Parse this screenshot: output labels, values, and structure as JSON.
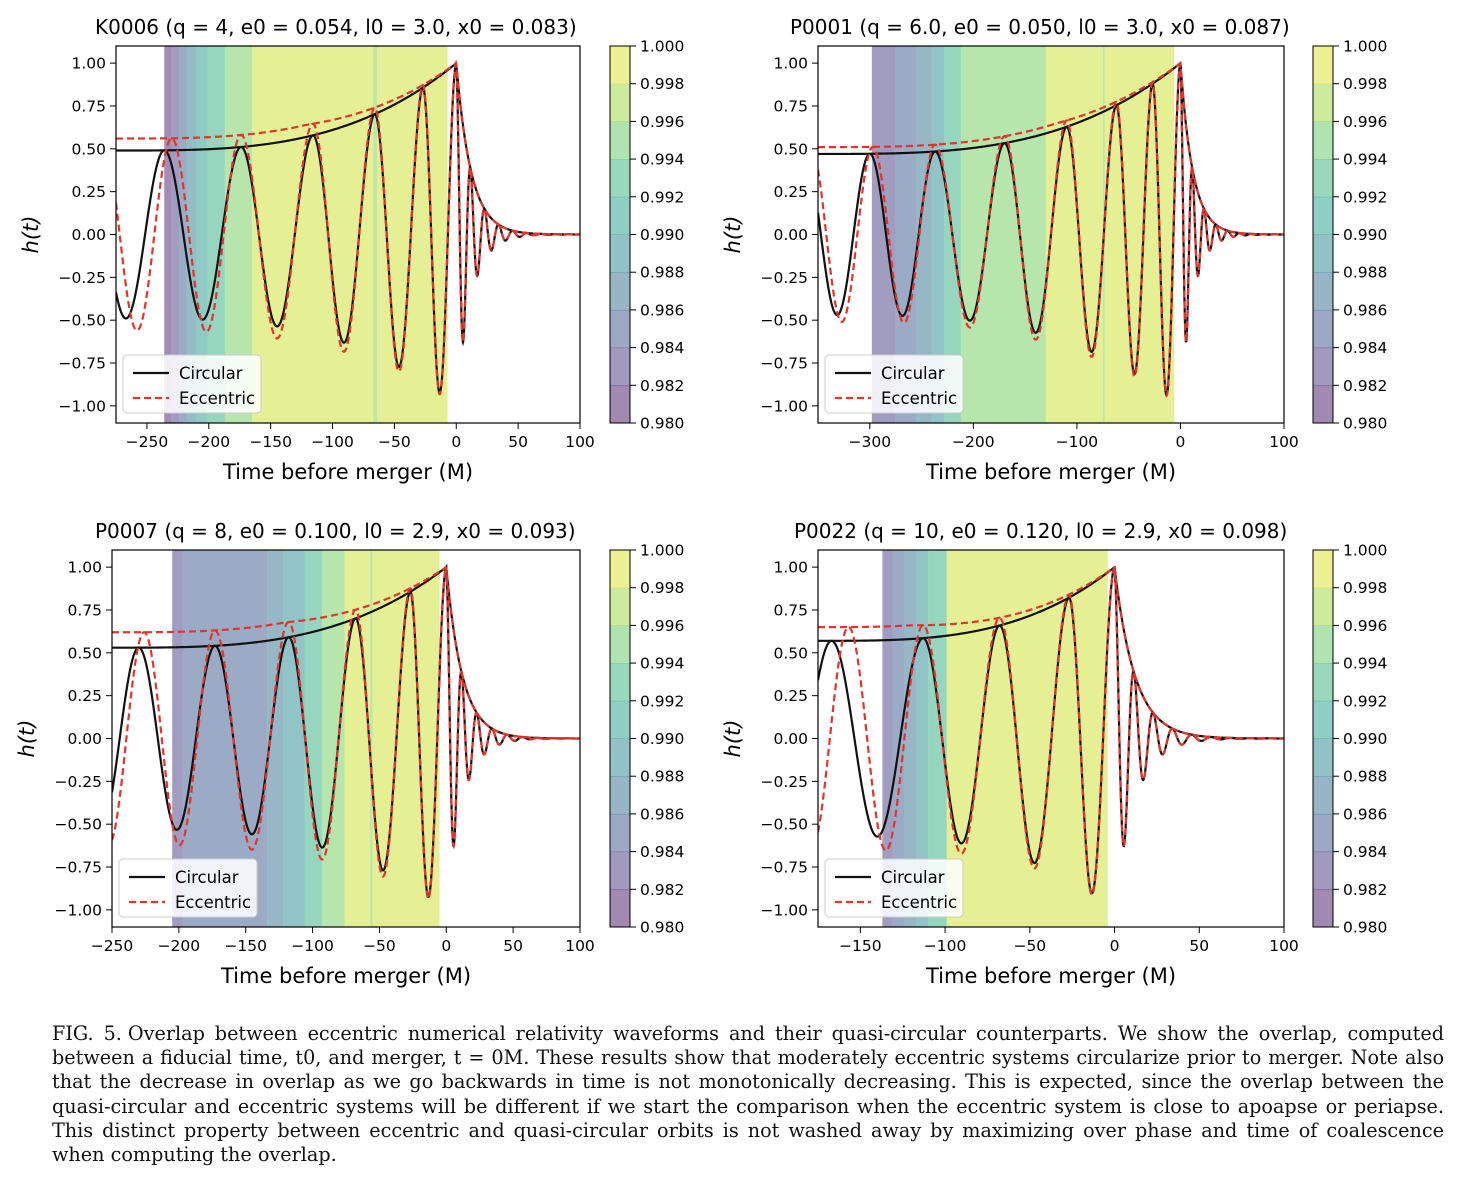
{
  "figure": {
    "caption_label": "FIG. 5.",
    "caption_text": "Overlap between eccentric numerical relativity waveforms and their quasi-circular counterparts. We show the overlap, computed between a fiducial time, t0, and merger, t = 0M. These results show that moderately eccentric systems circularize prior to merger. Note also that the decrease in overlap as we go backwards in time is not monotonically decreasing. This is expected, since the overlap between the quasi-circular and eccentric systems will be different if we start the comparison when the eccentric system is close to apoapse or periapse. This distinct property between eccentric and quasi-circular orbits is not washed away by maximizing over phase and time of coalescence when computing the overlap."
  },
  "colors": {
    "circular": "#111111",
    "eccentric": "#e0352b",
    "colormap_viridis": [
      "#440154",
      "#482878",
      "#3e4989",
      "#31688e",
      "#26828e",
      "#1f9e89",
      "#35b779",
      "#6ece58",
      "#b5de2b",
      "#fde725"
    ]
  },
  "chart_data": [
    {
      "type": "line",
      "id": "K0006",
      "title": "K0006 (q = 4, e0 = 0.054, l0 = 3.0, x0 = 0.083)",
      "title_parts": {
        "name": "K0006",
        "q": "4",
        "e0": "0.054",
        "l0": "3.0",
        "x0": "0.083"
      },
      "xlabel": "Time before merger (M)",
      "ylabel": "h(t)",
      "xlim": [
        -275,
        100
      ],
      "ylim": [
        -1.1,
        1.1
      ],
      "xticks": [
        "−250",
        "−200",
        "−150",
        "−100",
        "−50",
        "0",
        "50",
        "100"
      ],
      "xtick_values": [
        -250,
        -200,
        -150,
        -100,
        -50,
        0,
        50,
        100
      ],
      "yticks": [
        "1.00",
        "0.75",
        "0.50",
        "0.25",
        "0.00",
        "−0.25",
        "−0.50",
        "−0.75",
        "−1.00"
      ],
      "ytick_values": [
        1,
        0.75,
        0.5,
        0.25,
        0,
        -0.25,
        -0.5,
        -0.75,
        -1
      ],
      "legend": [
        "Circular",
        "Eccentric"
      ],
      "legend_position": "lower-left",
      "colorbar": {
        "min": 0.98,
        "max": 1.0,
        "ticks": [
          "1.000",
          "0.998",
          "0.996",
          "0.994",
          "0.992",
          "0.990",
          "0.988",
          "0.986",
          "0.984",
          "0.982",
          "0.980"
        ]
      },
      "overlap_bands": [
        {
          "t_start": -236,
          "t_end": -230,
          "overlap": 0.9815
        },
        {
          "t_start": -230,
          "t_end": -224,
          "overlap": 0.9835
        },
        {
          "t_start": -224,
          "t_end": -218,
          "overlap": 0.9855
        },
        {
          "t_start": -218,
          "t_end": -210,
          "overlap": 0.9885
        },
        {
          "t_start": -210,
          "t_end": -201,
          "overlap": 0.9905
        },
        {
          "t_start": -201,
          "t_end": -187,
          "overlap": 0.9925
        },
        {
          "t_start": -187,
          "t_end": -165,
          "overlap": 0.9955
        },
        {
          "t_start": -165,
          "t_end": -67,
          "overlap": 0.9985
        },
        {
          "t_start": -67,
          "t_end": -64,
          "overlap": 0.996
        },
        {
          "t_start": -64,
          "t_end": -7,
          "overlap": 0.9985
        }
      ],
      "circular_waveform": {
        "t_start": -275,
        "amp_start": 0.49,
        "amp_peak": 1.0,
        "ringdown": 12,
        "peaks": [
          -236,
          -174,
          -116,
          -66,
          -27,
          0
        ]
      },
      "eccentric_waveform": {
        "peaks": [
          -230,
          -174,
          -116,
          -66,
          -27,
          0
        ],
        "amp_offset": 0.07
      }
    },
    {
      "type": "line",
      "id": "P0001",
      "title": "P0001 (q = 6.0, e0 = 0.050, l0 = 3.0, x0 = 0.087)",
      "title_parts": {
        "name": "P0001",
        "q": "6.0",
        "e0": "0.050",
        "l0": "3.0",
        "x0": "0.087"
      },
      "xlabel": "Time before merger (M)",
      "ylabel": "h(t)",
      "xlim": [
        -350,
        100
      ],
      "ylim": [
        -1.1,
        1.1
      ],
      "xticks": [
        "−300",
        "−200",
        "−100",
        "0",
        "100"
      ],
      "xtick_values": [
        -300,
        -200,
        -100,
        0,
        100
      ],
      "yticks": [
        "1.00",
        "0.75",
        "0.50",
        "0.25",
        "0.00",
        "−0.25",
        "−0.50",
        "−0.75",
        "−1.00"
      ],
      "ytick_values": [
        1,
        0.75,
        0.5,
        0.25,
        0,
        -0.25,
        -0.5,
        -0.75,
        -1
      ],
      "legend": [
        "Circular",
        "Eccentric"
      ],
      "legend_position": "lower-left",
      "colorbar": {
        "min": 0.98,
        "max": 1.0,
        "ticks": [
          "1.000",
          "0.998",
          "0.996",
          "0.994",
          "0.992",
          "0.990",
          "0.988",
          "0.986",
          "0.984",
          "0.982",
          "0.980"
        ]
      },
      "overlap_bands": [
        {
          "t_start": -298,
          "t_end": -275,
          "overlap": 0.9835
        },
        {
          "t_start": -275,
          "t_end": -255,
          "overlap": 0.9855
        },
        {
          "t_start": -255,
          "t_end": -240,
          "overlap": 0.9875
        },
        {
          "t_start": -240,
          "t_end": -228,
          "overlap": 0.9895
        },
        {
          "t_start": -228,
          "t_end": -212,
          "overlap": 0.9925
        },
        {
          "t_start": -212,
          "t_end": -130,
          "overlap": 0.9955
        },
        {
          "t_start": -130,
          "t_end": -75,
          "overlap": 0.9985
        },
        {
          "t_start": -75,
          "t_end": -73,
          "overlap": 0.996
        },
        {
          "t_start": -73,
          "t_end": -6,
          "overlap": 0.9985
        }
      ],
      "circular_waveform": {
        "t_start": -350,
        "amp_start": 0.47,
        "amp_peak": 1.0,
        "ringdown": 12,
        "peaks": [
          -300,
          -237,
          -170,
          -110,
          -62,
          -27,
          0
        ]
      },
      "eccentric_waveform": {
        "peaks": [
          -297,
          -237,
          -170,
          -110,
          -62,
          -27,
          0
        ],
        "amp_offset": 0.04
      }
    },
    {
      "type": "line",
      "id": "P0007",
      "title": "P0007 (q = 8, e0 = 0.100, l0 = 2.9, x0 = 0.093)",
      "title_parts": {
        "name": "P0007",
        "q": "8",
        "e0": "0.100",
        "l0": "2.9",
        "x0": "0.093"
      },
      "xlabel": "Time before merger (M)",
      "ylabel": "h(t)",
      "xlim": [
        -250,
        100
      ],
      "ylim": [
        -1.1,
        1.1
      ],
      "xticks": [
        "−250",
        "−200",
        "−150",
        "−100",
        "−50",
        "0",
        "50",
        "100"
      ],
      "xtick_values": [
        -250,
        -200,
        -150,
        -100,
        -50,
        0,
        50,
        100
      ],
      "yticks": [
        "1.00",
        "0.75",
        "0.50",
        "0.25",
        "0.00",
        "−0.25",
        "−0.50",
        "−0.75",
        "−1.00"
      ],
      "ytick_values": [
        1,
        0.75,
        0.5,
        0.25,
        0,
        -0.25,
        -0.5,
        -0.75,
        -1
      ],
      "legend": [
        "Circular",
        "Eccentric"
      ],
      "legend_position": "lower-left",
      "colorbar": {
        "min": 0.98,
        "max": 1.0,
        "ticks": [
          "1.000",
          "0.998",
          "0.996",
          "0.994",
          "0.992",
          "0.990",
          "0.988",
          "0.986",
          "0.984",
          "0.982",
          "0.980"
        ]
      },
      "overlap_bands": [
        {
          "t_start": -205,
          "t_end": -197,
          "overlap": 0.9835
        },
        {
          "t_start": -197,
          "t_end": -134,
          "overlap": 0.9855
        },
        {
          "t_start": -134,
          "t_end": -122,
          "overlap": 0.9875
        },
        {
          "t_start": -122,
          "t_end": -106,
          "overlap": 0.9895
        },
        {
          "t_start": -106,
          "t_end": -93,
          "overlap": 0.9925
        },
        {
          "t_start": -93,
          "t_end": -76,
          "overlap": 0.9955
        },
        {
          "t_start": -76,
          "t_end": -57,
          "overlap": 0.9985
        },
        {
          "t_start": -57,
          "t_end": -55,
          "overlap": 0.996
        },
        {
          "t_start": -55,
          "t_end": -5,
          "overlap": 0.9985
        }
      ],
      "circular_waveform": {
        "t_start": -250,
        "amp_start": 0.53,
        "amp_peak": 1.0,
        "ringdown": 12,
        "peaks": [
          -230,
          -173,
          -118,
          -68,
          -27,
          0
        ]
      },
      "eccentric_waveform": {
        "peaks": [
          -226,
          -173,
          -118,
          -68,
          -27,
          0
        ],
        "amp_offset": 0.09
      }
    },
    {
      "type": "line",
      "id": "P0022",
      "title": "P0022 (q = 10, e0 = 0.120, l0 = 2.9, x0 = 0.098)",
      "title_parts": {
        "name": "P0022",
        "q": "10",
        "e0": "0.120",
        "l0": "2.9",
        "x0": "0.098"
      },
      "xlabel": "Time before merger (M)",
      "ylabel": "h(t)",
      "xlim": [
        -175,
        100
      ],
      "ylim": [
        -1.1,
        1.1
      ],
      "xticks": [
        "−150",
        "−100",
        "−50",
        "0",
        "50",
        "100"
      ],
      "xtick_values": [
        -150,
        -100,
        -50,
        0,
        50,
        100
      ],
      "yticks": [
        "1.00",
        "0.75",
        "0.50",
        "0.25",
        "0.00",
        "−0.25",
        "−0.50",
        "−0.75",
        "−1.00"
      ],
      "ytick_values": [
        1,
        0.75,
        0.5,
        0.25,
        0,
        -0.25,
        -0.5,
        -0.75,
        -1
      ],
      "legend": [
        "Circular",
        "Eccentric"
      ],
      "legend_position": "lower-left",
      "colorbar": {
        "min": 0.98,
        "max": 1.0,
        "ticks": [
          "1.000",
          "0.998",
          "0.996",
          "0.994",
          "0.992",
          "0.990",
          "0.988",
          "0.986",
          "0.984",
          "0.982",
          "0.980"
        ]
      },
      "overlap_bands": [
        {
          "t_start": -137,
          "t_end": -131,
          "overlap": 0.9835
        },
        {
          "t_start": -131,
          "t_end": -124,
          "overlap": 0.9855
        },
        {
          "t_start": -124,
          "t_end": -117,
          "overlap": 0.9875
        },
        {
          "t_start": -117,
          "t_end": -110,
          "overlap": 0.9895
        },
        {
          "t_start": -110,
          "t_end": -99,
          "overlap": 0.9925
        },
        {
          "t_start": -99,
          "t_end": -4,
          "overlap": 0.9985
        }
      ],
      "circular_waveform": {
        "t_start": -175,
        "amp_start": 0.57,
        "amp_peak": 1.0,
        "ringdown": 12,
        "peaks": [
          -167,
          -113,
          -68,
          -27,
          0
        ]
      },
      "eccentric_waveform": {
        "peaks": [
          -157,
          -113,
          -68,
          -27,
          0
        ],
        "amp_offset": 0.08
      }
    }
  ]
}
